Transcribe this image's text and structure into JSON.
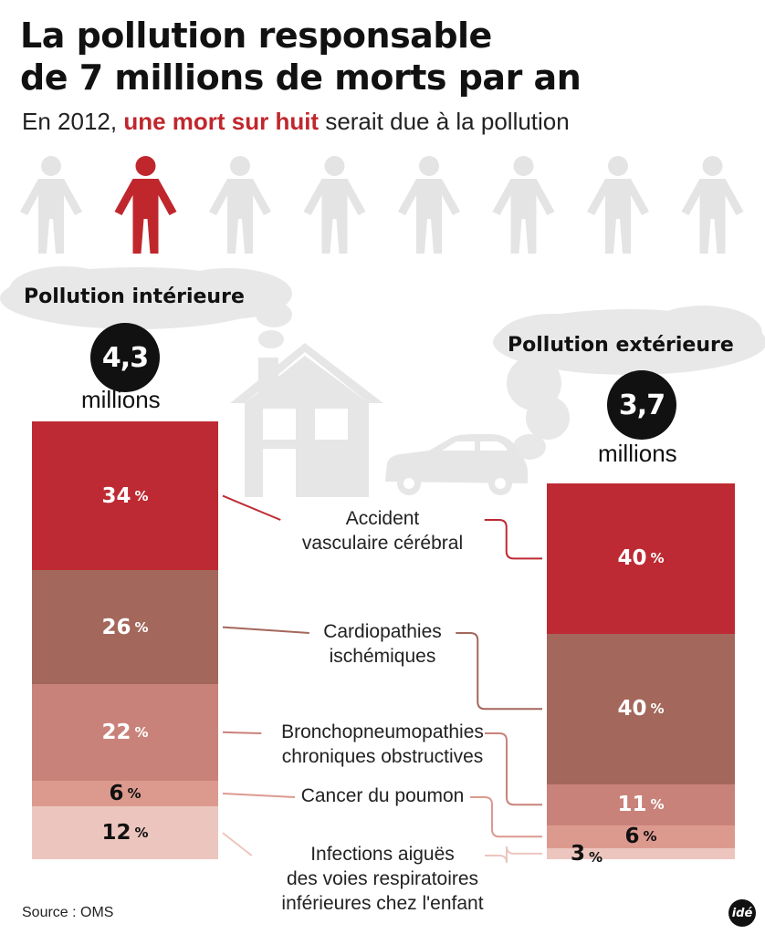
{
  "header": {
    "title_line1": "La pollution responsable",
    "title_line2": "de 7 millions de morts par an",
    "subtitle_prefix": "En 2012, ",
    "subtitle_highlight": "une mort sur huit",
    "subtitle_suffix": " serait due à la pollution"
  },
  "people": {
    "count": 8,
    "highlight_index": 1,
    "grey": "#e4e4e4",
    "red": "#c0272d"
  },
  "indoor": {
    "title": "Pollution intérieure",
    "total": "4,3",
    "unit": "millions"
  },
  "outdoor": {
    "title": "Pollution extérieure",
    "total": "3,7",
    "unit": "millions"
  },
  "chart_data": {
    "type": "stacked-bar",
    "categories": [
      "Accident vasculaire cérébral",
      "Cardiopathies ischémiques",
      "Bronchopneumopathies chroniques obstructives",
      "Cancer du poumon",
      "Infections aiguës des voies respiratoires inférieures chez l'enfant"
    ],
    "category_labels": [
      [
        "Accident",
        "vasculaire cérébral"
      ],
      [
        "Cardiopathies",
        "ischémiques"
      ],
      [
        "Bronchopneumopathies",
        "chroniques obstructives"
      ],
      [
        "Cancer du poumon"
      ],
      [
        "Infections aiguës",
        "des voies respiratoires",
        "inférieures chez l'enfant"
      ]
    ],
    "colors": [
      "#be2a33",
      "#a4675b",
      "#c9827a",
      "#dc9a8f",
      "#ecc6be"
    ],
    "text_colors": [
      "#ffffff",
      "#ffffff",
      "#ffffff",
      "#111111",
      "#111111"
    ],
    "series": [
      {
        "name": "Pollution intérieure",
        "values": [
          34,
          26,
          22,
          6,
          12
        ]
      },
      {
        "name": "Pollution extérieure",
        "values": [
          40,
          40,
          11,
          6,
          3
        ]
      }
    ],
    "value_suffix": "%"
  },
  "footer": {
    "source": "Source : OMS",
    "logo": "idé"
  }
}
